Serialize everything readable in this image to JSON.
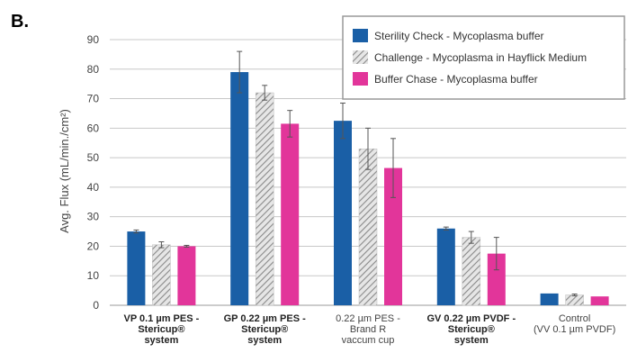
{
  "panel_label": "B.",
  "colors": {
    "series_blue": "#1a5fa6",
    "series_pink": "#e2359a",
    "hatch_bg": "#e6e6e6",
    "hatch_line": "#8a8a8a",
    "grid": "#c8c8c8",
    "axis_text": "#444444",
    "error_bar": "#555555"
  },
  "chart_data": {
    "type": "bar",
    "title": "",
    "ylabel": "Avg. Flux (mL/min./cm²)",
    "xlabel": "",
    "ylim": [
      0,
      90
    ],
    "yticks": [
      0,
      10,
      20,
      30,
      40,
      50,
      60,
      70,
      80,
      90
    ],
    "grid": true,
    "legend_position": "top-right",
    "categories": [
      {
        "lines": [
          "VP 0.1 µm PES -",
          "Stericup®",
          "system"
        ],
        "bold": true
      },
      {
        "lines": [
          "GP 0.22 µm PES -",
          "Stericup®",
          "system"
        ],
        "bold": true
      },
      {
        "lines": [
          "0.22 µm PES -",
          "Brand R",
          "vaccum cup"
        ],
        "bold": false
      },
      {
        "lines": [
          "GV 0.22 µm PVDF -",
          "Stericup®",
          "system"
        ],
        "bold": true
      },
      {
        "lines": [
          "Control",
          "(VV 0.1 µm PVDF)"
        ],
        "bold": false
      }
    ],
    "series": [
      {
        "name": "Sterility Check - Mycoplasma buffer",
        "pattern": "solid-blue",
        "values": [
          25,
          79,
          62.5,
          26,
          4
        ],
        "errors": [
          0.5,
          7,
          6,
          0.5,
          0
        ]
      },
      {
        "name": "Challenge - Mycoplasma in Hayflick Medium",
        "pattern": "hatched-gray",
        "values": [
          20.5,
          72,
          53,
          23,
          3.5
        ],
        "errors": [
          1,
          2.5,
          7,
          2,
          0.3
        ]
      },
      {
        "name": "Buffer Chase - Mycoplasma buffer",
        "pattern": "solid-pink",
        "values": [
          20,
          61.5,
          46.5,
          17.5,
          3
        ],
        "errors": [
          0.3,
          4.5,
          10,
          5.5,
          0
        ]
      }
    ]
  }
}
